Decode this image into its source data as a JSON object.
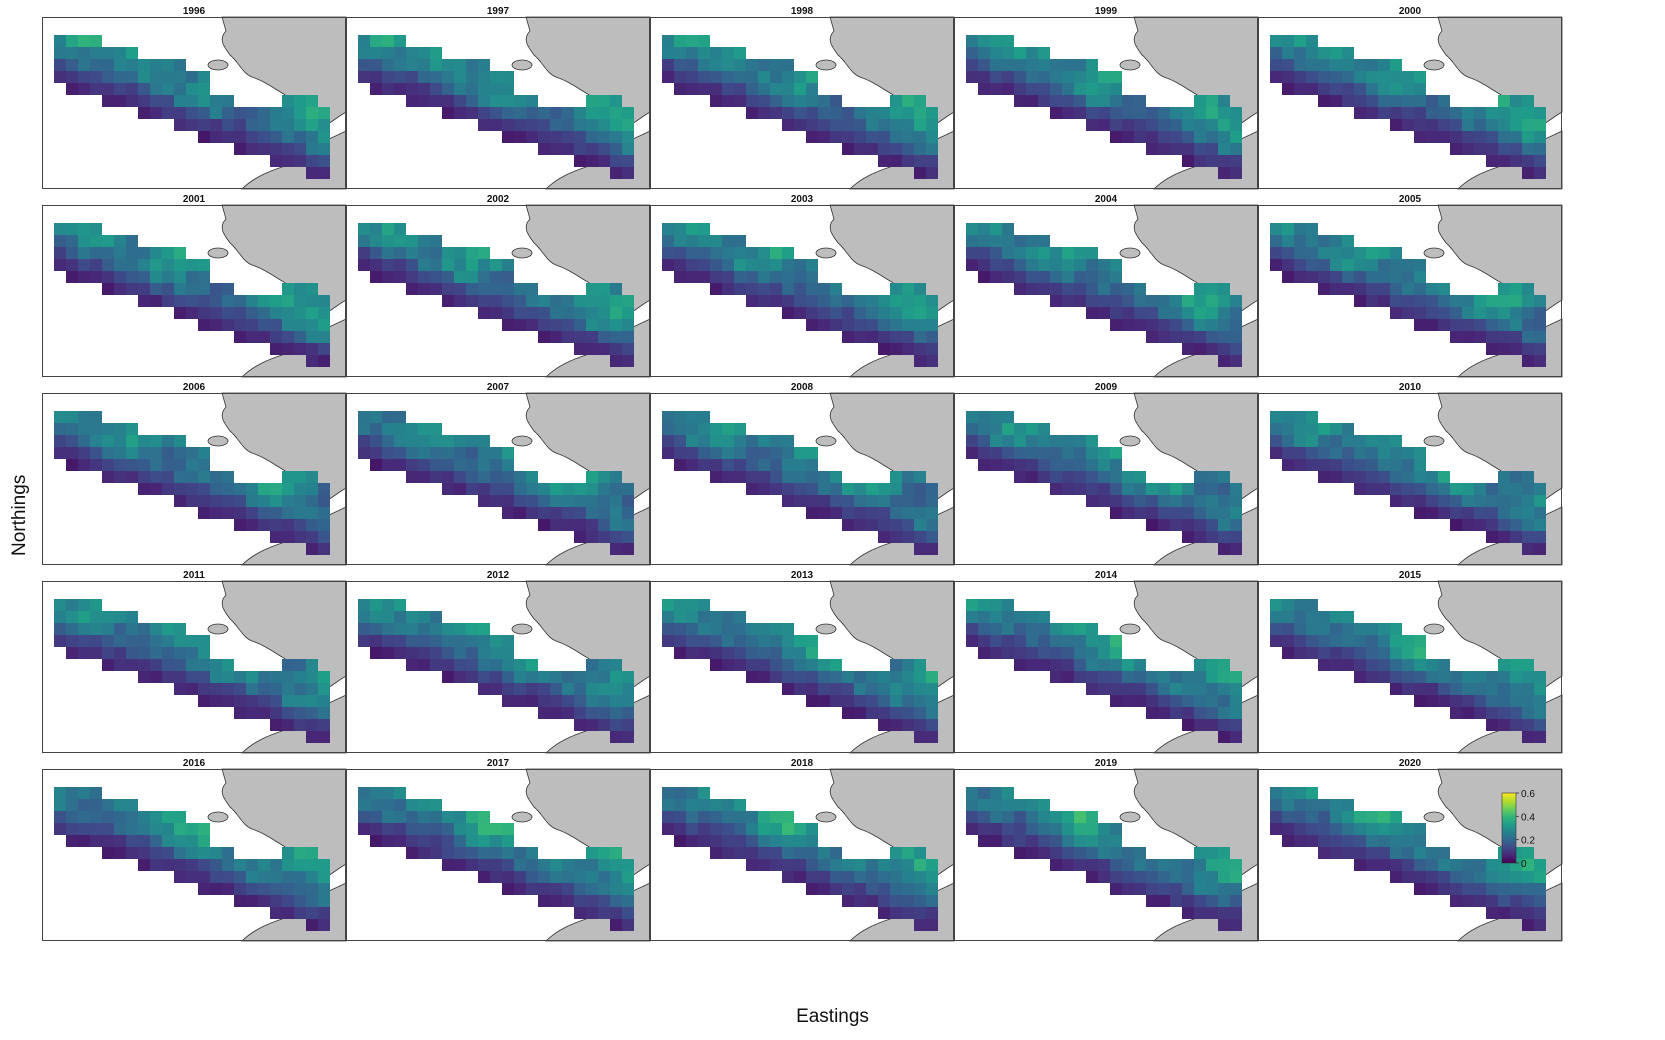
{
  "chart_data": {
    "type": "heatmap",
    "title": "",
    "xlabel": "Eastings",
    "ylabel": "Northings",
    "panel_titles": [
      "1996",
      "1997",
      "1998",
      "1999",
      "2000",
      "2001",
      "2002",
      "2003",
      "2004",
      "2005",
      "2006",
      "2007",
      "2008",
      "2009",
      "2010",
      "2011",
      "2012",
      "2013",
      "2014",
      "2015",
      "2016",
      "2017",
      "2018",
      "2019",
      "2020"
    ],
    "layout": {
      "rows": 5,
      "cols": 5
    },
    "colorbar": {
      "colormap": "viridis",
      "range": [
        0,
        0.6
      ],
      "ticks": [
        "0",
        "0.2",
        "0.4",
        "0.6"
      ]
    },
    "land_color": "#bdbdbd",
    "grid": false
  }
}
